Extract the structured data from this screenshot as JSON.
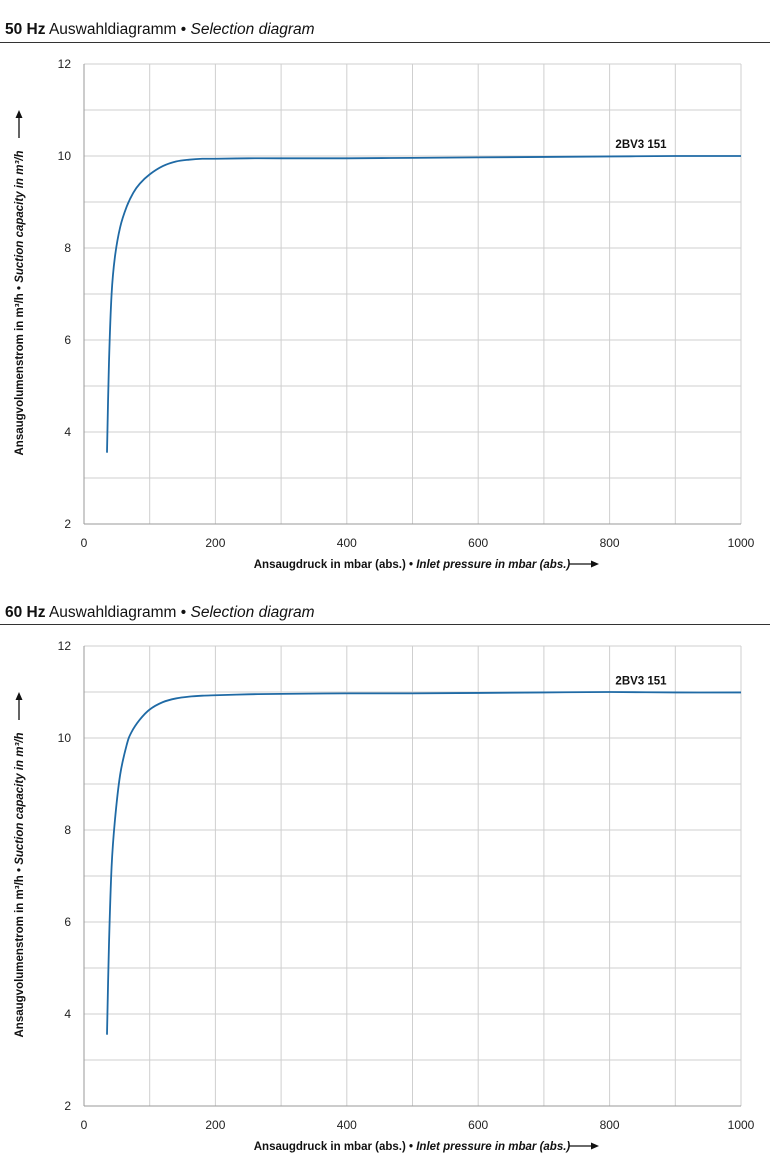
{
  "panels": [
    {
      "title": {
        "hz": "50 Hz",
        "de": "Auswahldiagramm",
        "sep": " • ",
        "en": "Selection diagram"
      },
      "chart_data": {
        "type": "line",
        "xlabel_de": "Ansaugdruck in mbar (abs.)",
        "xlabel_en": "Inlet pressure in mbar (abs.)",
        "ylabel_de": "Ansaugvolumenstrom in m³/h",
        "ylabel_en": "Suction capacity in m³/h",
        "xlim": [
          0,
          1000
        ],
        "ylim": [
          2,
          12
        ],
        "x_major_ticks": [
          0,
          200,
          400,
          600,
          800,
          1000
        ],
        "x_minor_grid_step": 100,
        "y_major_ticks": [
          2,
          4,
          6,
          8,
          10,
          12
        ],
        "y_minor_grid_step": 1,
        "grid": true,
        "series": [
          {
            "name": "2BV3 151",
            "color": "#1f6aa5",
            "x": [
              35,
              38,
              42,
              47,
              55,
              65,
              75,
              85,
              100,
              120,
              140,
              160,
              180,
              200,
              250,
              300,
              400,
              500,
              600,
              700,
              800,
              900,
              1000
            ],
            "y": [
              3.55,
              5.5,
              7.0,
              7.8,
              8.45,
              8.9,
              9.2,
              9.4,
              9.6,
              9.78,
              9.88,
              9.92,
              9.94,
              9.94,
              9.95,
              9.95,
              9.95,
              9.96,
              9.97,
              9.98,
              9.99,
              10.0,
              10.0
            ]
          }
        ]
      }
    },
    {
      "title": {
        "hz": "60 Hz",
        "de": "Auswahldiagramm",
        "sep": " • ",
        "en": "Selection diagram"
      },
      "chart_data": {
        "type": "line",
        "xlabel_de": "Ansaugdruck in mbar (abs.)",
        "xlabel_en": "Inlet pressure in mbar (abs.)",
        "ylabel_de": "Ansaugvolumenstrom in m³/h",
        "ylabel_en": "Suction capacity in m³/h",
        "xlim": [
          0,
          1000
        ],
        "ylim": [
          2,
          12
        ],
        "x_major_ticks": [
          0,
          200,
          400,
          600,
          800,
          1000
        ],
        "x_minor_grid_step": 100,
        "y_major_ticks": [
          2,
          4,
          6,
          8,
          10,
          12
        ],
        "y_minor_grid_step": 1,
        "grid": true,
        "series": [
          {
            "name": "2BV3 151",
            "color": "#1f6aa5",
            "x": [
              35,
              38,
              42,
              47,
              55,
              65,
              72,
              85,
              100,
              120,
              140,
              160,
              180,
              200,
              250,
              300,
              400,
              500,
              600,
              700,
              800,
              900,
              1000
            ],
            "y": [
              3.55,
              5.5,
              7.2,
              8.2,
              9.2,
              9.85,
              10.12,
              10.4,
              10.62,
              10.78,
              10.86,
              10.9,
              10.92,
              10.93,
              10.95,
              10.96,
              10.97,
              10.97,
              10.98,
              10.99,
              11.0,
              10.99,
              10.99
            ]
          }
        ]
      }
    }
  ]
}
